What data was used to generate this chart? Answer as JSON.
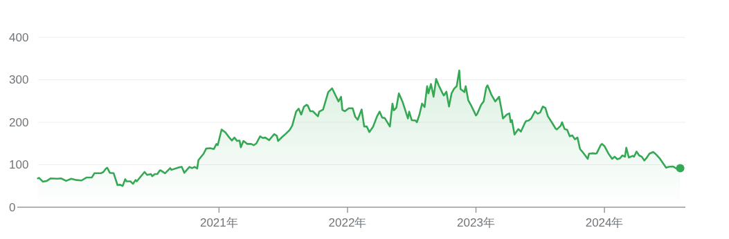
{
  "chart_data": {
    "type": "area",
    "x": [
      2019.59,
      2019.6,
      2019.63,
      2019.66,
      2019.69,
      2019.74,
      2019.77,
      2019.81,
      2019.85,
      2019.89,
      2019.93,
      2019.97,
      2020.01,
      2020.03,
      2020.08,
      2020.1,
      2020.12,
      2020.13,
      2020.15,
      2020.18,
      2020.21,
      2020.23,
      2020.25,
      2020.27,
      2020.28,
      2020.31,
      2020.33,
      2020.35,
      2020.36,
      2020.42,
      2020.44,
      2020.47,
      2020.48,
      2020.5,
      2020.52,
      2020.54,
      2020.55,
      2020.58,
      2020.62,
      2020.63,
      2020.68,
      2020.71,
      2020.73,
      2020.77,
      2020.79,
      2020.81,
      2020.83,
      2020.84,
      2020.88,
      2020.9,
      2020.93,
      2020.96,
      2020.98,
      2020.99,
      2021.02,
      2021.05,
      2021.08,
      2021.1,
      2021.12,
      2021.14,
      2021.16,
      2021.17,
      2021.19,
      2021.22,
      2021.25,
      2021.27,
      2021.29,
      2021.32,
      2021.34,
      2021.36,
      2021.39,
      2021.43,
      2021.45,
      2021.46,
      2021.49,
      2021.52,
      2021.55,
      2021.57,
      2021.6,
      2021.62,
      2021.64,
      2021.66,
      2021.68,
      2021.69,
      2021.71,
      2021.73,
      2021.77,
      2021.78,
      2021.81,
      2021.85,
      2021.88,
      2021.93,
      2021.95,
      2021.96,
      2021.98,
      2022.01,
      2022.04,
      2022.06,
      2022.08,
      2022.11,
      2022.13,
      2022.15,
      2022.17,
      2022.2,
      2022.23,
      2022.25,
      2022.27,
      2022.29,
      2022.33,
      2022.35,
      2022.36,
      2022.38,
      2022.4,
      2022.43,
      2022.47,
      2022.48,
      2022.5,
      2022.53,
      2022.54,
      2022.56,
      2022.58,
      2022.6,
      2022.62,
      2022.63,
      2022.65,
      2022.67,
      2022.69,
      2022.71,
      2022.74,
      2022.75,
      2022.77,
      2022.79,
      2022.81,
      2022.83,
      2022.85,
      2022.87,
      2022.88,
      2022.91,
      2022.92,
      2022.94,
      2022.96,
      2023.0,
      2023.01,
      2023.04,
      2023.06,
      2023.08,
      2023.09,
      2023.12,
      2023.15,
      2023.18,
      2023.2,
      2023.21,
      2023.24,
      2023.26,
      2023.27,
      2023.28,
      2023.3,
      2023.33,
      2023.35,
      2023.38,
      2023.39,
      2023.41,
      2023.43,
      2023.46,
      2023.48,
      2023.5,
      2023.52,
      2023.54,
      2023.56,
      2023.59,
      2023.62,
      2023.63,
      2023.66,
      2023.67,
      2023.69,
      2023.71,
      2023.73,
      2023.75,
      2023.77,
      2023.79,
      2023.81,
      2023.83,
      2023.85,
      2023.87,
      2023.88,
      2023.91,
      2023.93,
      2023.94,
      2023.97,
      2023.98,
      2024.0,
      2024.03,
      2024.06,
      2024.08,
      2024.1,
      2024.12,
      2024.14,
      2024.16,
      2024.17,
      2024.19,
      2024.22,
      2024.23,
      2024.25,
      2024.27,
      2024.29,
      2024.31,
      2024.33,
      2024.35,
      2024.38,
      2024.4,
      2024.43,
      2024.48,
      2024.5,
      2024.53,
      2024.54,
      2024.56,
      2024.59
    ],
    "series": [
      {
        "color": "#34a853",
        "values": [
          68,
          69,
          60,
          62,
          68,
          67,
          68,
          62,
          67,
          64,
          63,
          70,
          70,
          80,
          80,
          83,
          91,
          93,
          81,
          80,
          52,
          53,
          50,
          66,
          61,
          61,
          55,
          64,
          61,
          83,
          76,
          78,
          73,
          78,
          78,
          87,
          86,
          80,
          92,
          88,
          93,
          95,
          81,
          95,
          92,
          95,
          91,
          111,
          126,
          138,
          139,
          137,
          149,
          146,
          183,
          176,
          164,
          157,
          164,
          156,
          157,
          141,
          156,
          149,
          149,
          146,
          150,
          167,
          163,
          164,
          158,
          172,
          168,
          156,
          165,
          173,
          182,
          192,
          225,
          232,
          218,
          236,
          241,
          240,
          226,
          226,
          214,
          225,
          230,
          271,
          280,
          249,
          260,
          229,
          226,
          233,
          233,
          213,
          206,
          230,
          190,
          190,
          177,
          190,
          214,
          225,
          211,
          210,
          190,
          244,
          228,
          234,
          268,
          247,
          209,
          225,
          205,
          204,
          200,
          218,
          244,
          236,
          285,
          268,
          290,
          260,
          302,
          287,
          268,
          263,
          272,
          237,
          268,
          279,
          285,
          322,
          278,
          271,
          285,
          252,
          241,
          216,
          220,
          241,
          249,
          282,
          287,
          265,
          249,
          260,
          228,
          209,
          218,
          221,
          200,
          205,
          171,
          184,
          178,
          198,
          203,
          204,
          209,
          226,
          220,
          223,
          237,
          234,
          214,
          200,
          185,
          183,
          192,
          200,
          184,
          182,
          167,
          169,
          160,
          164,
          137,
          130,
          122,
          114,
          126,
          127,
          126,
          127,
          146,
          149,
          144,
          127,
          114,
          119,
          113,
          115,
          122,
          119,
          140,
          117,
          121,
          119,
          131,
          122,
          119,
          110,
          117,
          126,
          130,
          125,
          115,
          93,
          95,
          96,
          95,
          91,
          92
        ]
      }
    ],
    "xlim": [
      2019.43,
      2024.63
    ],
    "xticks": [
      {
        "value": 2021,
        "label": "2021年"
      },
      {
        "value": 2022,
        "label": "2022年"
      },
      {
        "value": 2023,
        "label": "2023年"
      },
      {
        "value": 2024,
        "label": "2024年"
      }
    ],
    "ylim": [
      0,
      400
    ],
    "yticks": [
      0,
      100,
      200,
      300,
      400
    ],
    "grid": "y"
  }
}
